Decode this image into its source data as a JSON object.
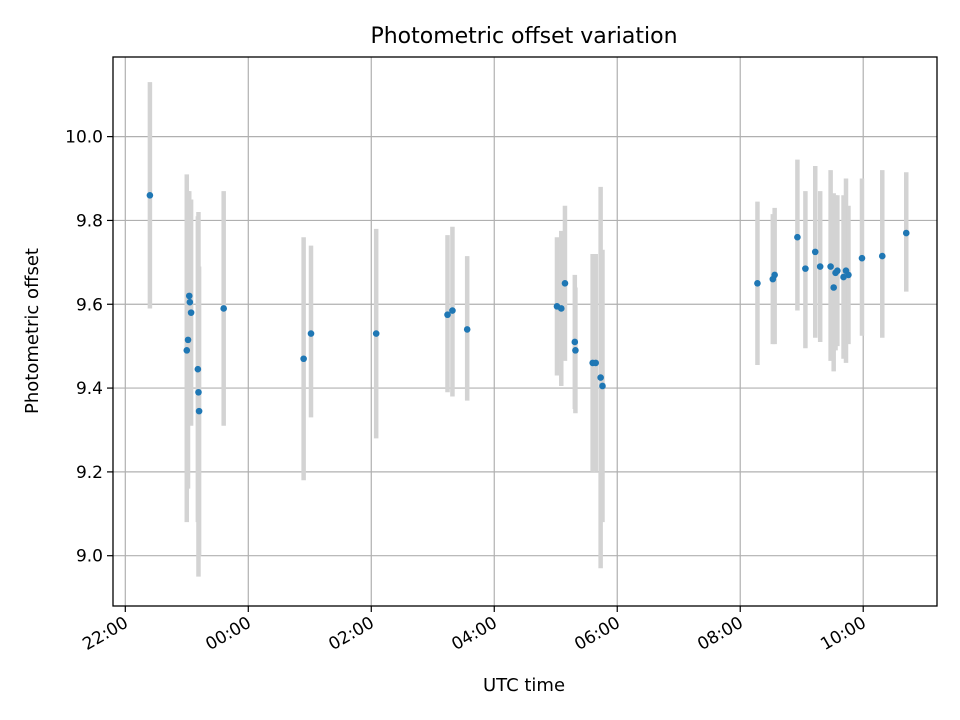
{
  "chart_data": {
    "type": "scatter",
    "title": "Photometric offset variation",
    "xlabel": "UTC time",
    "ylabel": "Photometric offset",
    "x_unit": "hours relative to 00:00 UTC",
    "xlim": [
      -2.2,
      11.2
    ],
    "ylim": [
      8.88,
      10.19
    ],
    "x_ticks": [
      {
        "value": -2,
        "label": "22:00"
      },
      {
        "value": 0,
        "label": "00:00"
      },
      {
        "value": 2,
        "label": "02:00"
      },
      {
        "value": 4,
        "label": "04:00"
      },
      {
        "value": 6,
        "label": "06:00"
      },
      {
        "value": 8,
        "label": "08:00"
      },
      {
        "value": 10,
        "label": "10:00"
      }
    ],
    "y_ticks": [
      {
        "value": 9.0,
        "label": "9.0"
      },
      {
        "value": 9.2,
        "label": "9.2"
      },
      {
        "value": 9.4,
        "label": "9.4"
      },
      {
        "value": 9.6,
        "label": "9.6"
      },
      {
        "value": 9.8,
        "label": "9.8"
      },
      {
        "value": 10.0,
        "label": "10.0"
      }
    ],
    "grid": true,
    "marker_color": "#1f77b4",
    "errorbar_color": "#d3d3d3",
    "points": [
      {
        "t": -1.6,
        "y": 9.86,
        "lo": 9.59,
        "hi": 10.13
      },
      {
        "t": -1.0,
        "y": 9.49,
        "lo": 9.08,
        "hi": 9.91
      },
      {
        "t": -0.98,
        "y": 9.515,
        "lo": 9.16,
        "hi": 9.87
      },
      {
        "t": -0.96,
        "y": 9.62,
        "lo": 9.37,
        "hi": 9.87
      },
      {
        "t": -0.95,
        "y": 9.605,
        "lo": 9.39,
        "hi": 9.82
      },
      {
        "t": -0.93,
        "y": 9.58,
        "lo": 9.31,
        "hi": 9.85
      },
      {
        "t": -0.82,
        "y": 9.445,
        "lo": 9.08,
        "hi": 9.81
      },
      {
        "t": -0.81,
        "y": 9.39,
        "lo": 8.95,
        "hi": 9.82
      },
      {
        "t": -0.8,
        "y": 9.345,
        "lo": 9.0,
        "hi": 9.69
      },
      {
        "t": -0.4,
        "y": 9.59,
        "lo": 9.31,
        "hi": 9.87
      },
      {
        "t": 0.9,
        "y": 9.47,
        "lo": 9.18,
        "hi": 9.76
      },
      {
        "t": 1.02,
        "y": 9.53,
        "lo": 9.33,
        "hi": 9.74
      },
      {
        "t": 2.08,
        "y": 9.53,
        "lo": 9.28,
        "hi": 9.78
      },
      {
        "t": 3.24,
        "y": 9.575,
        "lo": 9.39,
        "hi": 9.765
      },
      {
        "t": 3.32,
        "y": 9.585,
        "lo": 9.38,
        "hi": 9.785
      },
      {
        "t": 3.56,
        "y": 9.54,
        "lo": 9.37,
        "hi": 9.715
      },
      {
        "t": 5.02,
        "y": 9.595,
        "lo": 9.43,
        "hi": 9.76
      },
      {
        "t": 5.09,
        "y": 9.59,
        "lo": 9.405,
        "hi": 9.775
      },
      {
        "t": 5.15,
        "y": 9.65,
        "lo": 9.465,
        "hi": 9.835
      },
      {
        "t": 5.31,
        "y": 9.51,
        "lo": 9.35,
        "hi": 9.67
      },
      {
        "t": 5.32,
        "y": 9.49,
        "lo": 9.34,
        "hi": 9.64
      },
      {
        "t": 5.6,
        "y": 9.46,
        "lo": 9.2,
        "hi": 9.72
      },
      {
        "t": 5.65,
        "y": 9.46,
        "lo": 9.2,
        "hi": 9.72
      },
      {
        "t": 5.73,
        "y": 9.425,
        "lo": 8.97,
        "hi": 9.88
      },
      {
        "t": 5.76,
        "y": 9.405,
        "lo": 9.08,
        "hi": 9.73
      },
      {
        "t": 8.28,
        "y": 9.65,
        "lo": 9.455,
        "hi": 9.845
      },
      {
        "t": 8.53,
        "y": 9.66,
        "lo": 9.505,
        "hi": 9.815
      },
      {
        "t": 8.56,
        "y": 9.67,
        "lo": 9.505,
        "hi": 9.83
      },
      {
        "t": 8.93,
        "y": 9.76,
        "lo": 9.585,
        "hi": 9.945
      },
      {
        "t": 9.06,
        "y": 9.685,
        "lo": 9.495,
        "hi": 9.87
      },
      {
        "t": 9.22,
        "y": 9.725,
        "lo": 9.52,
        "hi": 9.93
      },
      {
        "t": 9.3,
        "y": 9.69,
        "lo": 9.51,
        "hi": 9.87
      },
      {
        "t": 9.47,
        "y": 9.69,
        "lo": 9.465,
        "hi": 9.92
      },
      {
        "t": 9.52,
        "y": 9.64,
        "lo": 9.44,
        "hi": 9.865
      },
      {
        "t": 9.55,
        "y": 9.675,
        "lo": 9.49,
        "hi": 9.86
      },
      {
        "t": 9.58,
        "y": 9.68,
        "lo": 9.5,
        "hi": 9.86
      },
      {
        "t": 9.68,
        "y": 9.665,
        "lo": 9.47,
        "hi": 9.86
      },
      {
        "t": 9.72,
        "y": 9.68,
        "lo": 9.46,
        "hi": 9.9
      },
      {
        "t": 9.76,
        "y": 9.67,
        "lo": 9.505,
        "hi": 9.835
      },
      {
        "t": 9.98,
        "y": 9.71,
        "lo": 9.525,
        "hi": 9.9
      },
      {
        "t": 10.31,
        "y": 9.715,
        "lo": 9.52,
        "hi": 9.92
      },
      {
        "t": 10.7,
        "y": 9.77,
        "lo": 9.63,
        "hi": 9.915
      }
    ]
  }
}
